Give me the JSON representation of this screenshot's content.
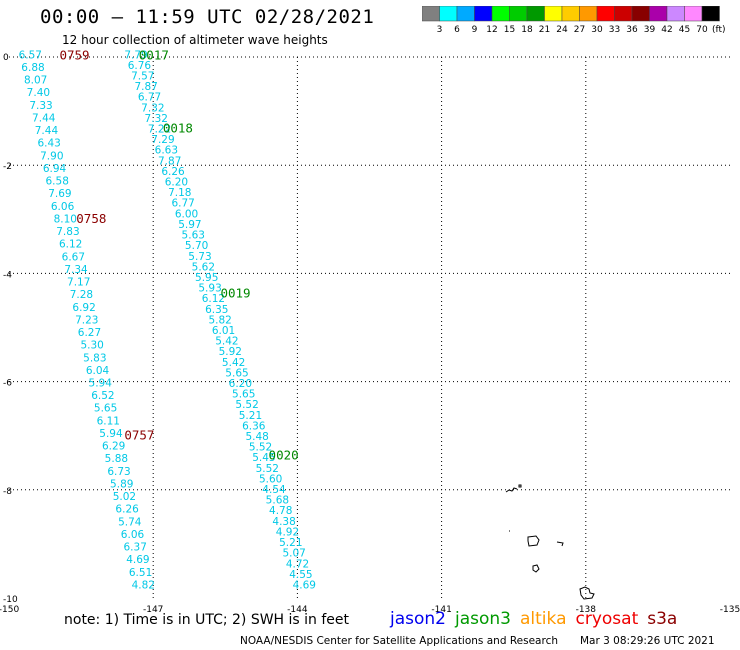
{
  "title": "00:00 – 11:59 UTC 02/28/2021",
  "subtitle": "12 hour collection of altimeter wave heights",
  "colorbar": {
    "colors": [
      "#808080",
      "#00ffff",
      "#00aaff",
      "#0000ff",
      "#00ff00",
      "#00cc00",
      "#009900",
      "#ffff00",
      "#ffcc00",
      "#ff9900",
      "#ff0000",
      "#cc0000",
      "#880000",
      "#aa00aa",
      "#cc88ff",
      "#ff88ff",
      "#000000"
    ],
    "labels": [
      "3",
      "6",
      "9",
      "12",
      "15",
      "18",
      "21",
      "24",
      "27",
      "30",
      "33",
      "36",
      "39",
      "42",
      "45",
      "70"
    ],
    "unit": "(ft)"
  },
  "footer": {
    "note": "note: 1) Time is in UTC; 2) SWH is in feet",
    "credit": "NOAA/NESDIS Center for Satellite Applications and Research",
    "timestamp": "Mar 3 08:29:26 UTC 2021"
  },
  "legend": [
    {
      "name": "jason2",
      "color": "#0000ee"
    },
    {
      "name": "jason3",
      "color": "#009900"
    },
    {
      "name": "altika",
      "color": "#ff9900"
    },
    {
      "name": "cryosat",
      "color": "#ee0000"
    },
    {
      "name": "s3a",
      "color": "#8b0000"
    }
  ],
  "chart_data": {
    "type": "scatter",
    "title": "00:00 – 11:59 UTC 02/28/2021",
    "subtitle": "12 hour collection of altimeter wave heights",
    "xlim": [
      -150,
      -135
    ],
    "ylim": [
      -10,
      0
    ],
    "x_ticks": [
      "-150",
      "-147",
      "-144",
      "-141",
      "-138",
      "-135"
    ],
    "y_ticks": [
      "0",
      "-2",
      "-4",
      "-6",
      "-8",
      "-10"
    ],
    "grid": true,
    "legend_position": "bottom-right",
    "value_color": "#00c8e6",
    "series": [
      {
        "name": "cryosat",
        "color": "#8b0000",
        "time_labels": [
          {
            "text": "0759",
            "x": -148.95,
            "y": 0.05
          },
          {
            "text": "0758",
            "x": -148.6,
            "y": -2.98
          },
          {
            "text": "0757",
            "x": -147.6,
            "y": -6.98
          }
        ],
        "values": [
          6.57,
          6.88,
          8.07,
          7.4,
          7.33,
          7.44,
          7.44,
          6.43,
          7.9,
          6.94,
          6.58,
          7.69,
          6.06,
          8.1,
          7.83,
          6.12,
          6.67,
          7.34,
          7.17,
          7.28,
          6.92,
          7.23,
          6.27,
          5.3,
          5.83,
          6.04,
          5.94,
          6.52,
          5.65,
          6.11,
          5.94,
          6.29,
          5.88,
          6.73,
          5.89,
          5.02,
          6.26,
          5.74,
          6.06,
          6.37,
          4.69,
          6.51,
          4.82
        ],
        "lon_start": -149.8,
        "lat_start": 0.05,
        "lon_end": -147.45,
        "lat_end": -9.75
      },
      {
        "name": "jason3",
        "color": "#008800",
        "time_labels": [
          {
            "text": "0017",
            "x": -147.3,
            "y": 0.05
          },
          {
            "text": "0018",
            "x": -146.8,
            "y": -1.3
          },
          {
            "text": "0019",
            "x": -145.6,
            "y": -4.35
          },
          {
            "text": "0020",
            "x": -144.6,
            "y": -7.35
          }
        ],
        "values": [
          7.79,
          6.76,
          7.57,
          7.87,
          6.77,
          7.32,
          7.32,
          7.22,
          7.29,
          6.63,
          7.87,
          6.26,
          6.2,
          7.18,
          6.77,
          6.0,
          5.97,
          5.63,
          5.7,
          5.73,
          5.62,
          5.95,
          5.93,
          6.12,
          6.35,
          5.82,
          6.01,
          5.42,
          5.92,
          5.42,
          5.65,
          6.2,
          5.65,
          5.52,
          5.21,
          6.36,
          5.48,
          5.52,
          5.45,
          5.52,
          5.6,
          4.54,
          5.68,
          4.78,
          4.38,
          4.92,
          5.21,
          5.07,
          4.72,
          4.55,
          4.69
        ],
        "lon_start": -147.6,
        "lat_start": 0.05,
        "lon_end": -144.1,
        "lat_end": -9.75
      }
    ]
  }
}
